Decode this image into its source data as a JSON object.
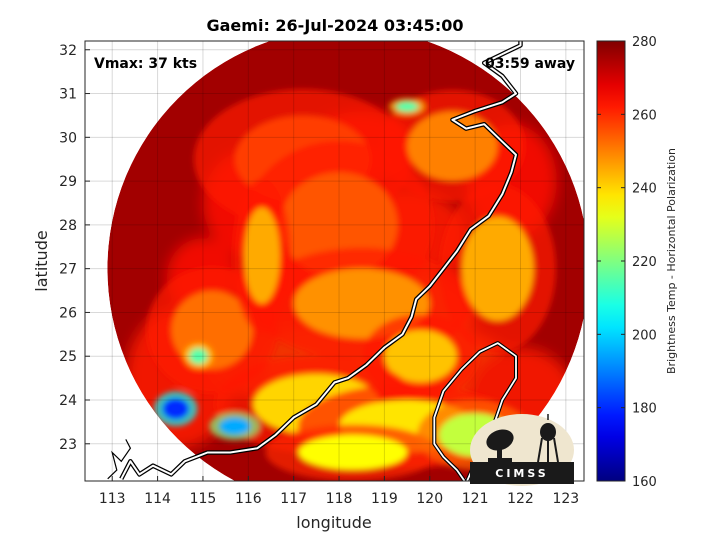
{
  "chart_data": {
    "type": "heatmap",
    "title": "Gaemi: 26-Jul-2024 03:45:00",
    "xlabel": "longitude",
    "ylabel": "latitude",
    "xlim": [
      112.4,
      123.4
    ],
    "ylim": [
      22.15,
      32.2
    ],
    "xticks": [
      113,
      114,
      115,
      116,
      117,
      118,
      119,
      120,
      121,
      122,
      123
    ],
    "yticks": [
      23,
      24,
      25,
      26,
      27,
      28,
      29,
      30,
      31,
      32
    ],
    "grid": true,
    "annotations": {
      "left": "Vmax: 37 kts",
      "right": "03:59 away"
    },
    "colorbar": {
      "label": "Brightness Temp - Horizontal Polarization",
      "range": [
        160,
        280
      ],
      "ticks": [
        160,
        180,
        200,
        220,
        240,
        260,
        280
      ],
      "colormap": "jet"
    },
    "swath": {
      "center": [
        118.2,
        27.0
      ],
      "radius_deg": 5.4
    },
    "background_temp": 276,
    "features": [
      {
        "lon": 114.4,
        "lat": 23.8,
        "temp": 180,
        "rx": 0.3,
        "ry": 0.25
      },
      {
        "lon": 115.7,
        "lat": 23.4,
        "temp": 195,
        "rx": 0.35,
        "ry": 0.2
      },
      {
        "lon": 114.9,
        "lat": 25.0,
        "temp": 215,
        "rx": 0.2,
        "ry": 0.18
      },
      {
        "lon": 119.5,
        "lat": 30.7,
        "temp": 215,
        "rx": 0.25,
        "ry": 0.12
      },
      {
        "lon": 117.5,
        "lat": 23.9,
        "temp": 240,
        "rx": 1.4,
        "ry": 0.7
      },
      {
        "lon": 119.5,
        "lat": 23.4,
        "temp": 238,
        "rx": 1.5,
        "ry": 0.6
      },
      {
        "lon": 121.0,
        "lat": 23.2,
        "temp": 228,
        "rx": 0.8,
        "ry": 0.5
      },
      {
        "lon": 118.3,
        "lat": 22.8,
        "temp": 235,
        "rx": 1.2,
        "ry": 0.4
      },
      {
        "lon": 116.3,
        "lat": 27.3,
        "temp": 245,
        "rx": 0.4,
        "ry": 1.1
      },
      {
        "lon": 118.5,
        "lat": 26.2,
        "temp": 248,
        "rx": 1.5,
        "ry": 0.8
      },
      {
        "lon": 121.5,
        "lat": 27.0,
        "temp": 245,
        "rx": 0.8,
        "ry": 1.2
      },
      {
        "lon": 120.5,
        "lat": 29.8,
        "temp": 250,
        "rx": 1.0,
        "ry": 0.8
      },
      {
        "lon": 115.2,
        "lat": 25.6,
        "temp": 252,
        "rx": 0.9,
        "ry": 0.9
      },
      {
        "lon": 119.8,
        "lat": 25.0,
        "temp": 242,
        "rx": 0.8,
        "ry": 0.6
      },
      {
        "lon": 117.2,
        "lat": 29.5,
        "temp": 258,
        "rx": 1.5,
        "ry": 1.0
      },
      {
        "lon": 118.0,
        "lat": 28.0,
        "temp": 255,
        "rx": 1.3,
        "ry": 1.2
      }
    ]
  },
  "logo": {
    "text": "CIMSS"
  }
}
